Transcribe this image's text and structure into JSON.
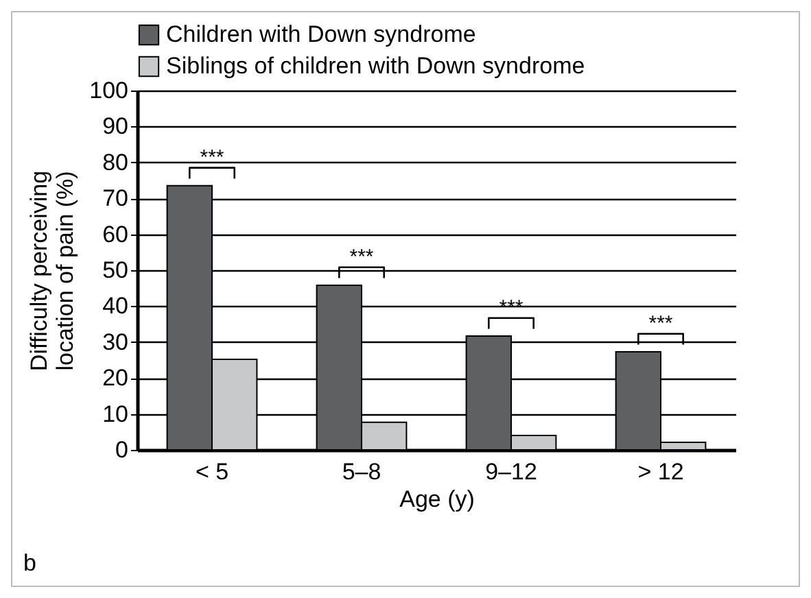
{
  "chart_data": {
    "type": "bar",
    "xlabel": "Age (y)",
    "ylabel": "Difficulty perceiving location of pain (%)",
    "categories": [
      "< 5",
      "5–8",
      "9–12",
      "> 12"
    ],
    "series": [
      {
        "name": "Children with Down syndrome",
        "color": "#5f6062",
        "values": [
          73.5,
          45.8,
          31.7,
          27.3
        ]
      },
      {
        "name": "Siblings of children with Down syndrome",
        "color": "#c8c9cb",
        "values": [
          25.2,
          7.7,
          4,
          2.1
        ]
      }
    ],
    "ylim": [
      0,
      100
    ],
    "yticks": [
      0,
      10,
      20,
      30,
      40,
      50,
      60,
      70,
      80,
      90,
      100
    ],
    "grid": "y",
    "legend": "top",
    "annotations": [
      "***",
      "***",
      "***",
      "***",
      "b"
    ]
  }
}
